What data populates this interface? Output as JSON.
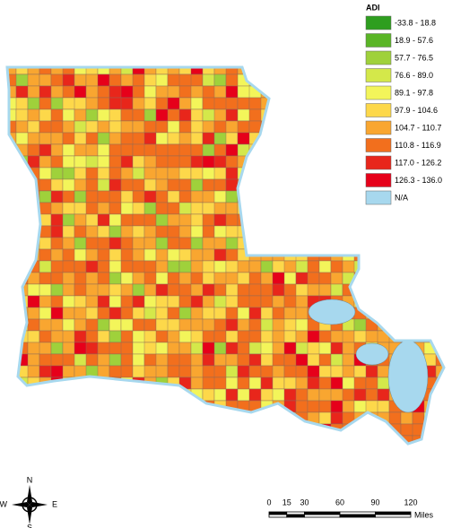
{
  "legend": {
    "title": "ADI",
    "items": [
      {
        "label": "-33.8 - 18.8",
        "color": "#2e9e1f"
      },
      {
        "label": "18.9 - 57.6",
        "color": "#5ab526"
      },
      {
        "label": "57.7 - 76.5",
        "color": "#9fd13b"
      },
      {
        "label": "76.6 - 89.0",
        "color": "#d4e84a"
      },
      {
        "label": "89.1 - 97.8",
        "color": "#f3f55a"
      },
      {
        "label": "97.9 - 104.6",
        "color": "#fdd84a"
      },
      {
        "label": "104.7 - 110.7",
        "color": "#f9a630"
      },
      {
        "label": "110.8 - 116.9",
        "color": "#f26f1d"
      },
      {
        "label": "117.0 - 126.2",
        "color": "#e8261b"
      },
      {
        "label": "126.3 - 136.0",
        "color": "#e6001a"
      },
      {
        "label": "N/A",
        "color": "#a7d8ee"
      }
    ]
  },
  "compass": {
    "n": "N",
    "e": "E",
    "s": "S",
    "w": "W"
  },
  "scale_bar": {
    "ticks": [
      0,
      15,
      30,
      60,
      90,
      120
    ],
    "unit": "Miles"
  }
}
